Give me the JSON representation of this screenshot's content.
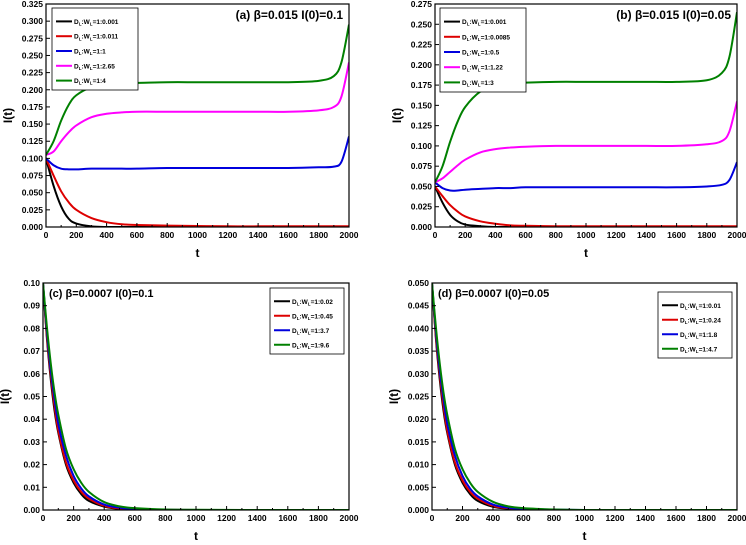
{
  "chart_data": [
    {
      "type": "line",
      "panel": "a",
      "title": "(a) β=0.015 I(0)=0.1",
      "xlabel": "t",
      "ylabel": "I(t)",
      "xlim": [
        0,
        2000
      ],
      "ylim": [
        0,
        0.325
      ],
      "xticks": [
        0,
        200,
        400,
        600,
        800,
        1000,
        1200,
        1400,
        1600,
        1800,
        2000
      ],
      "yticks": [
        0.0,
        0.025,
        0.05,
        0.075,
        0.1,
        0.125,
        0.15,
        0.175,
        0.2,
        0.225,
        0.25,
        0.275,
        0.3,
        0.325
      ],
      "ytick_labels": [
        "0.000",
        "0.025",
        "0.050",
        "0.075",
        "0.100",
        "0.125",
        "0.150",
        "0.175",
        "0.200",
        "0.225",
        "0.250",
        "0.275",
        "0.300",
        "0.325"
      ],
      "legend_position": "top-left",
      "x": [
        0,
        50,
        100,
        150,
        200,
        300,
        400,
        500,
        600,
        800,
        1000,
        1200,
        1400,
        1600,
        1800,
        1900,
        1950,
        2000
      ],
      "series": [
        {
          "name": "D_L:W_L=1:0.001",
          "color": "#000000",
          "values": [
            0.1,
            0.06,
            0.03,
            0.012,
            0.005,
            0.001,
            0,
            0,
            0,
            0,
            0,
            0,
            0,
            0,
            0,
            0,
            0,
            0
          ]
        },
        {
          "name": "D_L:W_L=1:0.011",
          "color": "#dd0000",
          "values": [
            0.1,
            0.075,
            0.052,
            0.036,
            0.025,
            0.013,
            0.007,
            0.004,
            0.003,
            0.002,
            0.0015,
            0.001,
            0.001,
            0.001,
            0.001,
            0.001,
            0.001,
            0.001
          ]
        },
        {
          "name": "D_L:W_L=1:1",
          "color": "#0000dd",
          "values": [
            0.1,
            0.09,
            0.085,
            0.084,
            0.084,
            0.085,
            0.085,
            0.085,
            0.085,
            0.086,
            0.086,
            0.086,
            0.086,
            0.086,
            0.087,
            0.088,
            0.095,
            0.132
          ]
        },
        {
          "name": "D_L:W_L=1:2.65",
          "color": "#ff00ff",
          "values": [
            0.105,
            0.11,
            0.125,
            0.138,
            0.148,
            0.16,
            0.165,
            0.167,
            0.168,
            0.168,
            0.168,
            0.168,
            0.168,
            0.168,
            0.17,
            0.175,
            0.19,
            0.24
          ]
        },
        {
          "name": "D_L:W_L=1:4",
          "color": "#008000",
          "values": [
            0.105,
            0.125,
            0.155,
            0.178,
            0.192,
            0.204,
            0.208,
            0.21,
            0.21,
            0.211,
            0.211,
            0.211,
            0.211,
            0.211,
            0.213,
            0.22,
            0.24,
            0.295
          ]
        }
      ]
    },
    {
      "type": "line",
      "panel": "b",
      "title": "(b) β=0.015 I(0)=0.05",
      "xlabel": "t",
      "ylabel": "I(t)",
      "xlim": [
        0,
        2000
      ],
      "ylim": [
        0,
        0.275
      ],
      "xticks": [
        0,
        200,
        400,
        600,
        800,
        1000,
        1200,
        1400,
        1600,
        1800,
        2000
      ],
      "yticks": [
        0.0,
        0.025,
        0.05,
        0.075,
        0.1,
        0.125,
        0.15,
        0.175,
        0.2,
        0.225,
        0.25,
        0.275
      ],
      "ytick_labels": [
        "0.000",
        "0.025",
        "0.050",
        "0.075",
        "0.100",
        "0.125",
        "0.150",
        "0.175",
        "0.200",
        "0.225",
        "0.250",
        "0.275"
      ],
      "legend_position": "top-left",
      "x": [
        0,
        50,
        100,
        150,
        200,
        300,
        400,
        500,
        600,
        800,
        1000,
        1200,
        1400,
        1600,
        1800,
        1900,
        1950,
        2000
      ],
      "series": [
        {
          "name": "D_L:W_L=1:0.001",
          "color": "#000000",
          "values": [
            0.05,
            0.03,
            0.015,
            0.007,
            0.003,
            0.001,
            0,
            0,
            0,
            0,
            0,
            0,
            0,
            0,
            0,
            0,
            0,
            0
          ]
        },
        {
          "name": "D_L:W_L=1:0.0085",
          "color": "#dd0000",
          "values": [
            0.05,
            0.038,
            0.027,
            0.019,
            0.013,
            0.007,
            0.004,
            0.002,
            0.0015,
            0.001,
            0.001,
            0.001,
            0.001,
            0.001,
            0.001,
            0.001,
            0.001,
            0.001
          ]
        },
        {
          "name": "D_L:W_L=1:0.5",
          "color": "#0000dd",
          "values": [
            0.055,
            0.048,
            0.045,
            0.045,
            0.046,
            0.047,
            0.048,
            0.048,
            0.049,
            0.049,
            0.049,
            0.049,
            0.049,
            0.049,
            0.05,
            0.052,
            0.058,
            0.08
          ]
        },
        {
          "name": "D_L:W_L=1:1.22",
          "color": "#ff00ff",
          "values": [
            0.055,
            0.06,
            0.068,
            0.076,
            0.083,
            0.092,
            0.096,
            0.098,
            0.099,
            0.1,
            0.1,
            0.1,
            0.1,
            0.1,
            0.102,
            0.106,
            0.118,
            0.155
          ]
        },
        {
          "name": "D_L:W_L=1:3",
          "color": "#008000",
          "values": [
            0.055,
            0.075,
            0.105,
            0.13,
            0.148,
            0.167,
            0.174,
            0.177,
            0.178,
            0.179,
            0.179,
            0.179,
            0.179,
            0.179,
            0.181,
            0.19,
            0.21,
            0.265
          ]
        }
      ]
    },
    {
      "type": "line",
      "panel": "c",
      "title": "(c) β=0.0007 I(0)=0.1",
      "xlabel": "t",
      "ylabel": "I(t)",
      "xlim": [
        0,
        2000
      ],
      "ylim": [
        0,
        0.1
      ],
      "xticks": [
        0,
        200,
        400,
        600,
        800,
        1000,
        1200,
        1400,
        1600,
        1800,
        2000
      ],
      "yticks": [
        0.0,
        0.01,
        0.02,
        0.03,
        0.04,
        0.05,
        0.06,
        0.07,
        0.08,
        0.09,
        0.1
      ],
      "ytick_labels": [
        "0.00",
        "0.01",
        "0.02",
        "0.03",
        "0.04",
        "0.05",
        "0.06",
        "0.07",
        "0.08",
        "0.09",
        "0.10"
      ],
      "legend_position": "top-right",
      "x": [
        0,
        25,
        50,
        75,
        100,
        150,
        200,
        250,
        300,
        400,
        500,
        600,
        800,
        1000,
        1500,
        2000
      ],
      "series": [
        {
          "name": "D_L:W_L=1:0.02",
          "color": "#000000",
          "values": [
            0.1,
            0.076,
            0.058,
            0.044,
            0.034,
            0.02,
            0.012,
            0.007,
            0.004,
            0.0015,
            0.0005,
            0.0002,
            0,
            0,
            0,
            0
          ]
        },
        {
          "name": "D_L:W_L=1:0.45",
          "color": "#dd0000",
          "values": [
            0.1,
            0.077,
            0.06,
            0.046,
            0.035,
            0.021,
            0.013,
            0.008,
            0.005,
            0.0018,
            0.0007,
            0.0003,
            0.0001,
            0,
            0,
            0
          ]
        },
        {
          "name": "D_L:W_L=1:3.7",
          "color": "#0000dd",
          "values": [
            0.1,
            0.079,
            0.062,
            0.049,
            0.038,
            0.024,
            0.015,
            0.0095,
            0.006,
            0.0024,
            0.001,
            0.0004,
            0.0001,
            0,
            0,
            0
          ]
        },
        {
          "name": "D_L:W_L=1:9.6",
          "color": "#008000",
          "values": [
            0.1,
            0.081,
            0.065,
            0.052,
            0.042,
            0.027,
            0.018,
            0.012,
            0.008,
            0.0035,
            0.0016,
            0.0008,
            0.0002,
            0.0001,
            0,
            0
          ]
        }
      ]
    },
    {
      "type": "line",
      "panel": "d",
      "title": "(d) β=0.0007 I(0)=0.05",
      "xlabel": "t",
      "ylabel": "I(t)",
      "xlim": [
        0,
        2000
      ],
      "ylim": [
        0,
        0.05
      ],
      "xticks": [
        0,
        200,
        400,
        600,
        800,
        1000,
        1200,
        1400,
        1600,
        1800,
        2000
      ],
      "yticks": [
        0.0,
        0.005,
        0.01,
        0.015,
        0.02,
        0.025,
        0.03,
        0.035,
        0.04,
        0.045,
        0.05
      ],
      "ytick_labels": [
        "0.000",
        "0.005",
        "0.010",
        "0.015",
        "0.020",
        "0.025",
        "0.030",
        "0.035",
        "0.040",
        "0.045",
        "0.050"
      ],
      "legend_position": "top-right",
      "x": [
        0,
        25,
        50,
        75,
        100,
        150,
        200,
        250,
        300,
        400,
        500,
        600,
        800,
        1000,
        1500,
        2000
      ],
      "series": [
        {
          "name": "D_L:W_L=1:0.01",
          "color": "#000000",
          "values": [
            0.05,
            0.038,
            0.029,
            0.022,
            0.017,
            0.01,
            0.006,
            0.0035,
            0.002,
            0.0007,
            0.0003,
            0.0001,
            0,
            0,
            0,
            0
          ]
        },
        {
          "name": "D_L:W_L=1:0.24",
          "color": "#dd0000",
          "values": [
            0.05,
            0.0385,
            0.03,
            0.023,
            0.0175,
            0.0105,
            0.0065,
            0.004,
            0.0025,
            0.0009,
            0.0004,
            0.0002,
            0,
            0,
            0,
            0
          ]
        },
        {
          "name": "D_L:W_L=1:1.8",
          "color": "#0000dd",
          "values": [
            0.05,
            0.0395,
            0.031,
            0.0245,
            0.019,
            0.012,
            0.0075,
            0.0047,
            0.003,
            0.0012,
            0.0005,
            0.0002,
            0.0001,
            0,
            0,
            0
          ]
        },
        {
          "name": "D_L:W_L=1:4.7",
          "color": "#008000",
          "values": [
            0.05,
            0.0405,
            0.0325,
            0.026,
            0.021,
            0.0135,
            0.009,
            0.006,
            0.004,
            0.0018,
            0.0008,
            0.0004,
            0.0001,
            0,
            0,
            0
          ]
        }
      ]
    }
  ]
}
